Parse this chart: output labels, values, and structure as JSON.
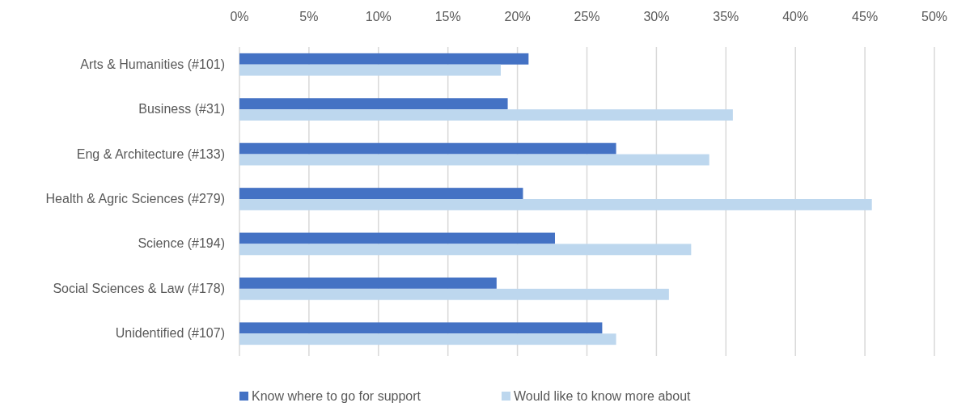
{
  "chart_data": {
    "type": "bar",
    "orientation": "horizontal",
    "categories": [
      "Arts & Humanities (#101)",
      "Business (#31)",
      "Eng & Architecture (#133)",
      "Health & Agric Sciences (#279)",
      "Science (#194)",
      "Social Sciences & Law (#178)",
      "Unidentified (#107)"
    ],
    "series": [
      {
        "name": "Know where to go for support",
        "color": "#4472c4",
        "values": [
          20.8,
          19.3,
          27.1,
          20.4,
          22.7,
          18.5,
          26.1
        ]
      },
      {
        "name": "Would like to know more about",
        "color": "#bdd7ee",
        "values": [
          18.8,
          35.5,
          33.8,
          45.5,
          32.5,
          30.9,
          27.1
        ]
      }
    ],
    "xlim": [
      0,
      50
    ],
    "xticks": [
      {
        "value": 0,
        "label": "0%"
      },
      {
        "value": 5,
        "label": "5%"
      },
      {
        "value": 10,
        "label": "10%"
      },
      {
        "value": 15,
        "label": "15%"
      },
      {
        "value": 20,
        "label": "20%"
      },
      {
        "value": 25,
        "label": "25%"
      },
      {
        "value": 30,
        "label": "30%"
      },
      {
        "value": 35,
        "label": "35%"
      },
      {
        "value": 40,
        "label": "40%"
      },
      {
        "value": 45,
        "label": "45%"
      },
      {
        "value": 50,
        "label": "50%"
      }
    ],
    "grid": "x",
    "legend": "bottom"
  }
}
